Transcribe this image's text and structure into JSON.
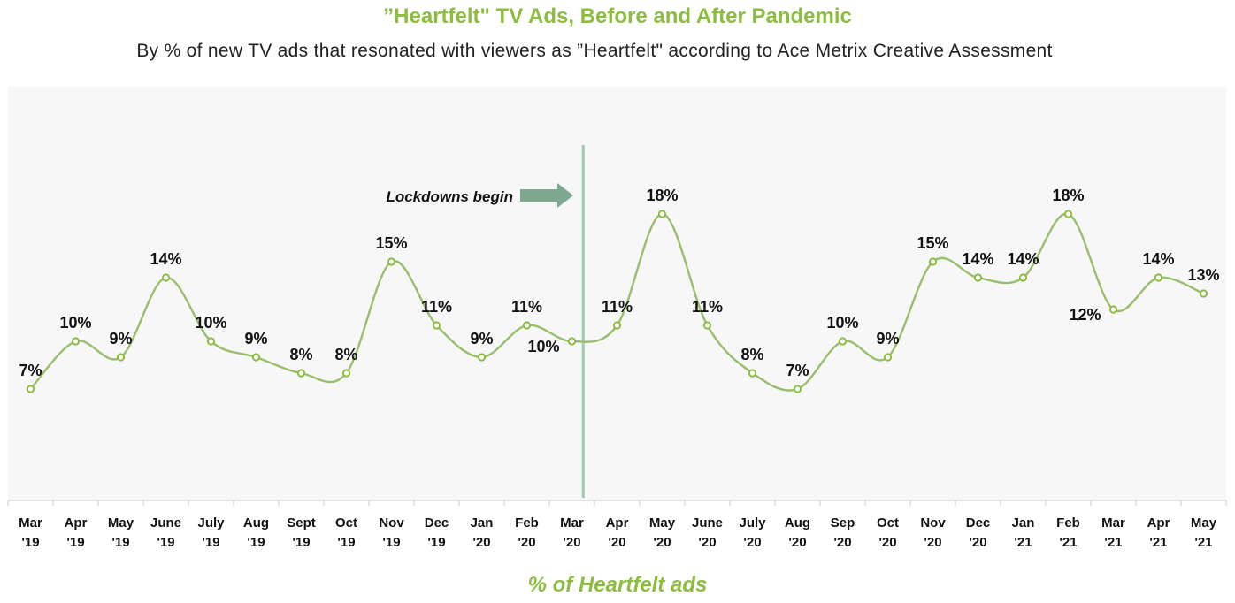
{
  "header": {
    "title": "”Heartfelt\" TV Ads, Before and After Pandemic",
    "subtitle": "By % of new TV ads that resonated with viewers as ”Heartfelt\" according to Ace Metrix Creative Assessment"
  },
  "colors": {
    "accent": "#8cbd3f",
    "line": "#97bf6c",
    "divider": "#9ccdb0",
    "arrow": "#7daa8e"
  },
  "chart_data": {
    "type": "line",
    "title": "”Heartfelt\" TV Ads, Before and After Pandemic",
    "subtitle": "By % of new TV ads that resonated with viewers as ”Heartfelt\" according to Ace Metrix Creative Assessment",
    "xlabel": "% of Heartfelt ads",
    "ylabel": "",
    "ylim": [
      0,
      26
    ],
    "grid": false,
    "categories": [
      [
        "Mar",
        "'19"
      ],
      [
        "Apr",
        "'19"
      ],
      [
        "May",
        "'19"
      ],
      [
        "June",
        "'19"
      ],
      [
        "July",
        "'19"
      ],
      [
        "Aug",
        "'19"
      ],
      [
        "Sept",
        "'19"
      ],
      [
        "Oct",
        "'19"
      ],
      [
        "Nov",
        "'19"
      ],
      [
        "Dec",
        "'19"
      ],
      [
        "Jan",
        "'20"
      ],
      [
        "Feb",
        "'20"
      ],
      [
        "Mar",
        "'20"
      ],
      [
        "Apr",
        "'20"
      ],
      [
        "May",
        "'20"
      ],
      [
        "June",
        "'20"
      ],
      [
        "July",
        "'20"
      ],
      [
        "Aug",
        "'20"
      ],
      [
        "Sep",
        "'20"
      ],
      [
        "Oct",
        "'20"
      ],
      [
        "Nov",
        "'20"
      ],
      [
        "Dec",
        "'20"
      ],
      [
        "Jan",
        "'21"
      ],
      [
        "Feb",
        "'21"
      ],
      [
        "Mar",
        "'21"
      ],
      [
        "Apr",
        "'21"
      ],
      [
        "May",
        "'21"
      ]
    ],
    "series": [
      {
        "name": "% of Heartfelt ads",
        "values": [
          7,
          10,
          9,
          14,
          10,
          9,
          8,
          8,
          15,
          11,
          9,
          11,
          10,
          11,
          18,
          11,
          8,
          7,
          10,
          9,
          15,
          14,
          14,
          18,
          12,
          14,
          13
        ],
        "labels": [
          "7%",
          "10%",
          "9%",
          "14%",
          "10%",
          "9%",
          "8%",
          "8%",
          "15%",
          "11%",
          "9%",
          "11%",
          "10%",
          "11%",
          "18%",
          "11%",
          "8%",
          "7%",
          "10%",
          "9%",
          "15%",
          "14%",
          "14%",
          "18%",
          "12%",
          "14%",
          "13%"
        ]
      }
    ],
    "label_placement": [
      "above",
      "above",
      "above",
      "above",
      "above",
      "above",
      "above",
      "above",
      "above",
      "above",
      "above",
      "above",
      "left",
      "above",
      "above",
      "above",
      "above",
      "above",
      "above",
      "above",
      "above",
      "above",
      "above",
      "above",
      "left",
      "above",
      "above"
    ],
    "annotation": {
      "text": "Lockdowns begin",
      "divider_between": [
        "Feb '20",
        "Mar '20"
      ],
      "arrow": "right"
    }
  }
}
